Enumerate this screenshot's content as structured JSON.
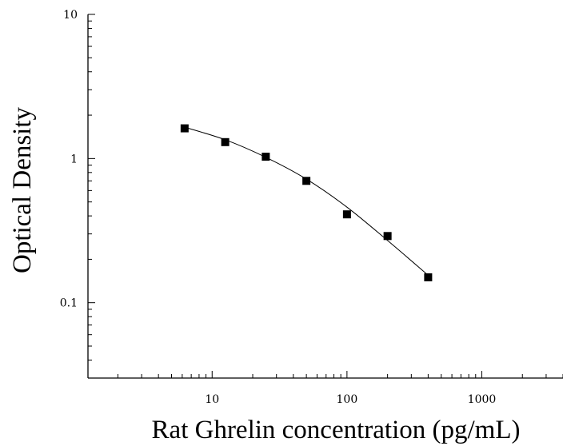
{
  "chart_data": {
    "type": "scatter",
    "title": "",
    "xlabel": "Rat Ghrelin concentration (pg/mL)",
    "ylabel": "Optical Density",
    "x_scale": "log",
    "y_scale": "log",
    "xlim": [
      1.2,
      4000
    ],
    "ylim": [
      0.03,
      10
    ],
    "x_ticks": [
      10,
      100,
      1000
    ],
    "x_tick_labels": [
      "10",
      "100",
      "1000"
    ],
    "y_ticks": [
      0.1,
      1,
      10
    ],
    "y_tick_labels": [
      "0.1",
      "1",
      "10"
    ],
    "grid": false,
    "series": [
      {
        "marker": "square",
        "color": "#000000",
        "points": [
          {
            "x": 6.25,
            "y": 1.62
          },
          {
            "x": 12.5,
            "y": 1.3
          },
          {
            "x": 25,
            "y": 1.03
          },
          {
            "x": 50,
            "y": 0.7
          },
          {
            "x": 100,
            "y": 0.41
          },
          {
            "x": 200,
            "y": 0.29
          },
          {
            "x": 400,
            "y": 0.15
          }
        ]
      }
    ],
    "fit_curve": {
      "color": "#000000",
      "points": [
        {
          "x": 6.25,
          "y": 1.65
        },
        {
          "x": 12.5,
          "y": 1.35
        },
        {
          "x": 25,
          "y": 1.02
        },
        {
          "x": 50,
          "y": 0.72
        },
        {
          "x": 100,
          "y": 0.46
        },
        {
          "x": 200,
          "y": 0.27
        },
        {
          "x": 400,
          "y": 0.155
        }
      ]
    }
  }
}
